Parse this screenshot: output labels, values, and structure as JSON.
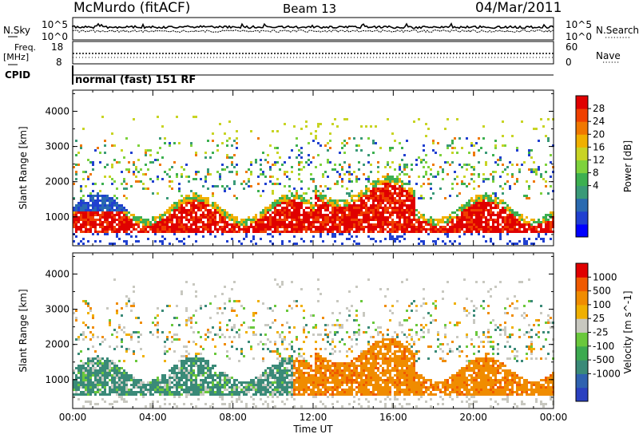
{
  "header": {
    "station": "McMurdo (fitACF)",
    "beam": "Beam 13",
    "date": "04/Mar/2011"
  },
  "noise_panel": {
    "left_label": "N.Sky",
    "right_label": "N.Search",
    "left_ticks": [
      "10^5",
      "10^0"
    ],
    "right_ticks": [
      "10^5",
      "10^0"
    ]
  },
  "freq_panel": {
    "left_label_line1": "Freq.",
    "left_label_line2": "[MHz]",
    "left_ticks": [
      "18",
      "8"
    ],
    "right_label": "Nave",
    "right_ticks": [
      "60",
      "0"
    ]
  },
  "cpid_panel": {
    "label": "CPID",
    "text": "normal (fast) 151 RF"
  },
  "chart_data": [
    {
      "type": "heatmap",
      "title": "",
      "xlabel": "",
      "ylabel": "Slant Range [km]",
      "x_ticks": [
        "00:00",
        "04:00",
        "08:00",
        "12:00",
        "16:00",
        "20:00",
        "00:00"
      ],
      "xlim_hours": [
        0,
        24
      ],
      "ylim": [
        180,
        4600
      ],
      "y_ticks": [
        1000,
        2000,
        3000,
        4000
      ],
      "colorbar": {
        "label": "Power [dB]",
        "ticks": [
          "28",
          "24",
          "20",
          "16",
          "12",
          "8",
          "4"
        ],
        "range": [
          0,
          32
        ],
        "colors": [
          "#0000ff",
          "#2040d0",
          "#2a6ab0",
          "#3a9a78",
          "#3cb050",
          "#7ed23c",
          "#c8d424",
          "#f0b000",
          "#f07800",
          "#f04000",
          "#e00000"
        ]
      }
    },
    {
      "type": "heatmap",
      "title": "",
      "xlabel": "Time UT",
      "ylabel": "Slant Range [km]",
      "x_ticks": [
        "00:00",
        "04:00",
        "08:00",
        "12:00",
        "16:00",
        "20:00",
        "00:00"
      ],
      "xlim_hours": [
        0,
        24
      ],
      "ylim": [
        180,
        4600
      ],
      "y_ticks": [
        1000,
        2000,
        3000,
        4000
      ],
      "colorbar": {
        "label": "Velocity [m s^-1]",
        "ticks": [
          "1000",
          "500",
          "100",
          "25",
          "-25",
          "-100",
          "-500",
          "-1000"
        ],
        "colors": [
          "#2a40c0",
          "#2f62b0",
          "#3a8a78",
          "#3caa50",
          "#6ac83c",
          "#c8c8c0",
          "#f0b000",
          "#f08c00",
          "#f05a00",
          "#e00000"
        ]
      }
    }
  ]
}
